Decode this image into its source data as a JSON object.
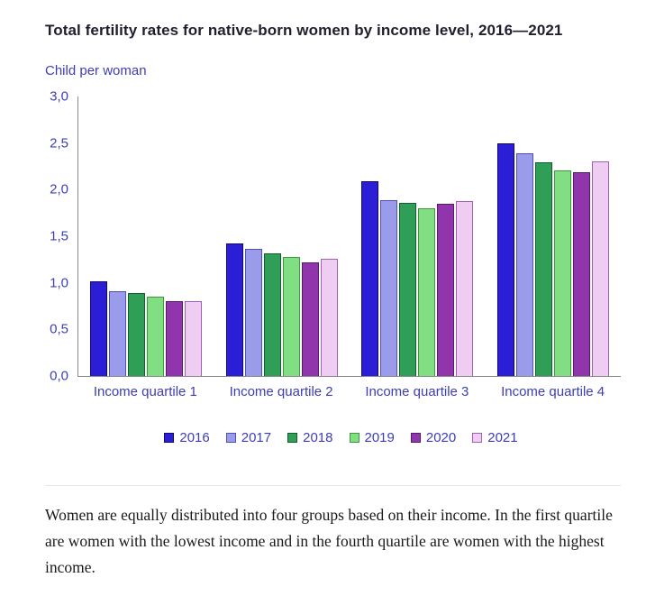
{
  "title": "Total fertility rates for native-born women by income level, 2016—2021",
  "footer_text": "Women are equally distributed into four groups based on their income. In the first quartile are women with the lowest income and in the fourth quartile are women with the highest income.",
  "chart_data": {
    "type": "bar",
    "title": "Total fertility rates for native-born women by income level, 2016—2021",
    "ylabel": "Child per woman",
    "xlabel": "",
    "ylim": [
      0,
      3
    ],
    "grid": false,
    "legend_position": "bottom",
    "yticks": [
      {
        "label": "3,0",
        "value": 3.0
      },
      {
        "label": "2,5",
        "value": 2.5
      },
      {
        "label": "2,0",
        "value": 2.0
      },
      {
        "label": "1,5",
        "value": 1.5
      },
      {
        "label": "1,0",
        "value": 1.0
      },
      {
        "label": "0,5",
        "value": 0.5
      },
      {
        "label": "0,0",
        "value": 0.0
      }
    ],
    "categories": [
      "Income quartile 1",
      "Income quartile 2",
      "Income quartile 3",
      "Income quartile 4"
    ],
    "series": [
      {
        "name": "2016",
        "color": "#2a1fd6",
        "border": "#10086e",
        "values": [
          1.02,
          1.42,
          2.09,
          2.5
        ]
      },
      {
        "name": "2017",
        "color": "#9b9bec",
        "border": "#5050b4",
        "values": [
          0.91,
          1.36,
          1.89,
          2.39
        ]
      },
      {
        "name": "2018",
        "color": "#2f9e57",
        "border": "#135c2d",
        "values": [
          0.89,
          1.32,
          1.86,
          2.29
        ]
      },
      {
        "name": "2019",
        "color": "#82de82",
        "border": "#3c9a3c",
        "values": [
          0.85,
          1.28,
          1.8,
          2.21
        ]
      },
      {
        "name": "2020",
        "color": "#9135ad",
        "border": "#551a68",
        "values": [
          0.8,
          1.22,
          1.85,
          2.19
        ]
      },
      {
        "name": "2021",
        "color": "#efccf2",
        "border": "#a060b4",
        "values": [
          0.8,
          1.26,
          1.88,
          2.3
        ]
      }
    ]
  }
}
